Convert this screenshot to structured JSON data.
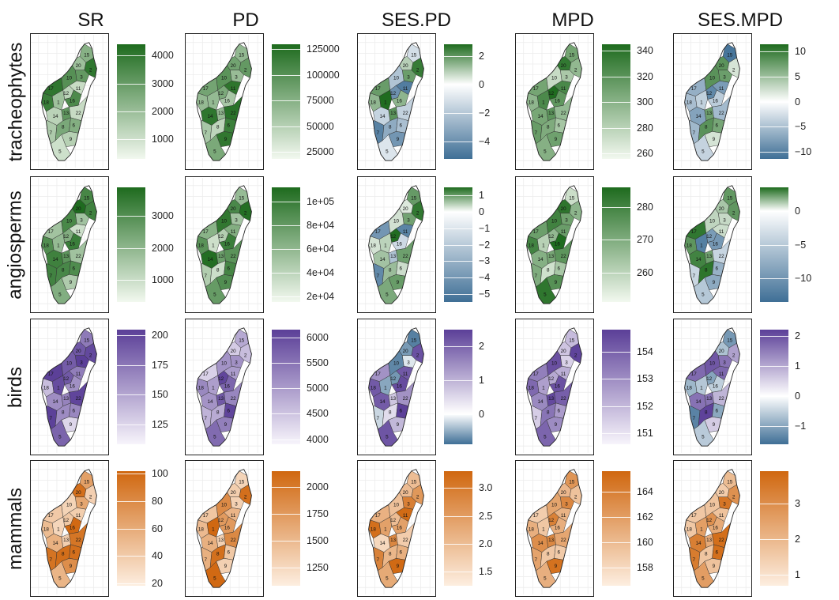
{
  "columns": [
    "SR",
    "PD",
    "SES.PD",
    "MPD",
    "SES.MPD"
  ],
  "rows": [
    {
      "label": "tracheophytes",
      "palette": "green",
      "cells": [
        {
          "metric": "SR",
          "ticks": [
            "4000",
            "3000",
            "2000",
            "1000"
          ],
          "tick_values": [
            4000,
            3000,
            2000,
            1000
          ],
          "range": [
            300,
            4400
          ],
          "diverging": false
        },
        {
          "metric": "PD",
          "ticks": [
            "125000",
            "100000",
            "75000",
            "50000",
            "25000"
          ],
          "tick_values": [
            125000,
            100000,
            75000,
            50000,
            25000
          ],
          "range": [
            18000,
            130000
          ],
          "diverging": false
        },
        {
          "metric": "SES.PD",
          "ticks": [
            "2",
            "0",
            "−2",
            "−4"
          ],
          "tick_values": [
            2,
            0,
            -2,
            -4
          ],
          "range": [
            -5.2,
            2.8
          ],
          "diverging": true
        },
        {
          "metric": "MPD",
          "ticks": [
            "340",
            "320",
            "300",
            "280",
            "260"
          ],
          "tick_values": [
            340,
            320,
            300,
            280,
            260
          ],
          "range": [
            256,
            345
          ],
          "diverging": false
        },
        {
          "metric": "SES.MPD",
          "ticks": [
            "10",
            "5",
            "0",
            "−5",
            "−10"
          ],
          "tick_values": [
            10,
            5,
            0,
            -5,
            -10
          ],
          "range": [
            -11.5,
            11.5
          ],
          "diverging": true
        }
      ]
    },
    {
      "label": "angiosperms",
      "palette": "green",
      "cells": [
        {
          "metric": "SR",
          "ticks": [
            "3000",
            "2000",
            "1000"
          ],
          "tick_values": [
            3000,
            2000,
            1000
          ],
          "range": [
            300,
            3900
          ],
          "diverging": false
        },
        {
          "metric": "PD",
          "ticks": [
            "1e+05",
            "8e+04",
            "6e+04",
            "4e+04",
            "2e+04"
          ],
          "tick_values": [
            100000,
            80000,
            60000,
            40000,
            20000
          ],
          "range": [
            15000,
            112000
          ],
          "diverging": false
        },
        {
          "metric": "SES.PD",
          "ticks": [
            "1",
            "0",
            "−1",
            "−2",
            "−3",
            "−4",
            "−5"
          ],
          "tick_values": [
            1,
            0,
            -1,
            -2,
            -3,
            -4,
            -5
          ],
          "range": [
            -5.5,
            1.5
          ],
          "diverging": true
        },
        {
          "metric": "MPD",
          "ticks": [
            "280",
            "270",
            "260"
          ],
          "tick_values": [
            280,
            270,
            260
          ],
          "range": [
            251,
            286
          ],
          "diverging": false
        },
        {
          "metric": "SES.MPD",
          "ticks": [
            "0",
            "−5",
            "−10"
          ],
          "tick_values": [
            0,
            -5,
            -10
          ],
          "range": [
            -13.5,
            3.5
          ],
          "diverging": true
        }
      ]
    },
    {
      "label": "birds",
      "palette": "purple",
      "cells": [
        {
          "metric": "SR",
          "ticks": [
            "200",
            "175",
            "150",
            "125"
          ],
          "tick_values": [
            200,
            175,
            150,
            125
          ],
          "range": [
            108,
            205
          ],
          "diverging": false
        },
        {
          "metric": "PD",
          "ticks": [
            "6000",
            "5500",
            "5000",
            "4500",
            "4000"
          ],
          "tick_values": [
            6000,
            5500,
            5000,
            4500,
            4000
          ],
          "range": [
            3900,
            6150
          ],
          "diverging": false
        },
        {
          "metric": "SES.PD",
          "ticks": [
            "2",
            "1",
            "0"
          ],
          "tick_values": [
            2,
            1,
            0
          ],
          "range": [
            -0.9,
            2.5
          ],
          "diverging": true
        },
        {
          "metric": "MPD",
          "ticks": [
            "154",
            "153",
            "152",
            "151"
          ],
          "tick_values": [
            154,
            153,
            152,
            151
          ],
          "range": [
            150.6,
            154.8
          ],
          "diverging": false
        },
        {
          "metric": "SES.MPD",
          "ticks": [
            "2",
            "1",
            "0",
            "−1"
          ],
          "tick_values": [
            2,
            1,
            0,
            -1
          ],
          "range": [
            -1.6,
            2.2
          ],
          "diverging": true
        }
      ]
    },
    {
      "label": "mammals",
      "palette": "orange",
      "cells": [
        {
          "metric": "SR",
          "ticks": [
            "100",
            "80",
            "60",
            "40",
            "20"
          ],
          "tick_values": [
            100,
            80,
            60,
            40,
            20
          ],
          "range": [
            18,
            102
          ],
          "diverging": false
        },
        {
          "metric": "PD",
          "ticks": [
            "2000",
            "1750",
            "1500",
            "1250"
          ],
          "tick_values": [
            2000,
            1750,
            1500,
            1250
          ],
          "range": [
            1080,
            2150
          ],
          "diverging": false
        },
        {
          "metric": "SES.PD",
          "ticks": [
            "3.0",
            "2.5",
            "2.0",
            "1.5"
          ],
          "tick_values": [
            3.0,
            2.5,
            2.0,
            1.5
          ],
          "range": [
            1.25,
            3.3
          ],
          "diverging": false
        },
        {
          "metric": "MPD",
          "ticks": [
            "164",
            "162",
            "160",
            "158"
          ],
          "tick_values": [
            164,
            162,
            160,
            158
          ],
          "range": [
            156.6,
            165.6
          ],
          "diverging": false
        },
        {
          "metric": "SES.MPD",
          "ticks": [
            "3",
            "2",
            "1"
          ],
          "tick_values": [
            3,
            2,
            1
          ],
          "range": [
            0.7,
            3.9
          ],
          "diverging": false
        }
      ]
    }
  ],
  "region_labels": [
    "15",
    "20",
    "2",
    "3",
    "17",
    "10",
    "12",
    "18",
    "11",
    "1",
    "16",
    "13",
    "14",
    "22",
    "7",
    "8",
    "6",
    "9",
    "5"
  ],
  "colors": {
    "green_high": "#1e6b1e",
    "green_low": "#f2f8ef",
    "purple_high": "#5b3f98",
    "purple_low": "#f7f4fb",
    "orange_high": "#d0670f",
    "orange_low": "#fdeee0",
    "diverging_low": "#3f6f96",
    "diverging_mid": "#ffffff"
  }
}
